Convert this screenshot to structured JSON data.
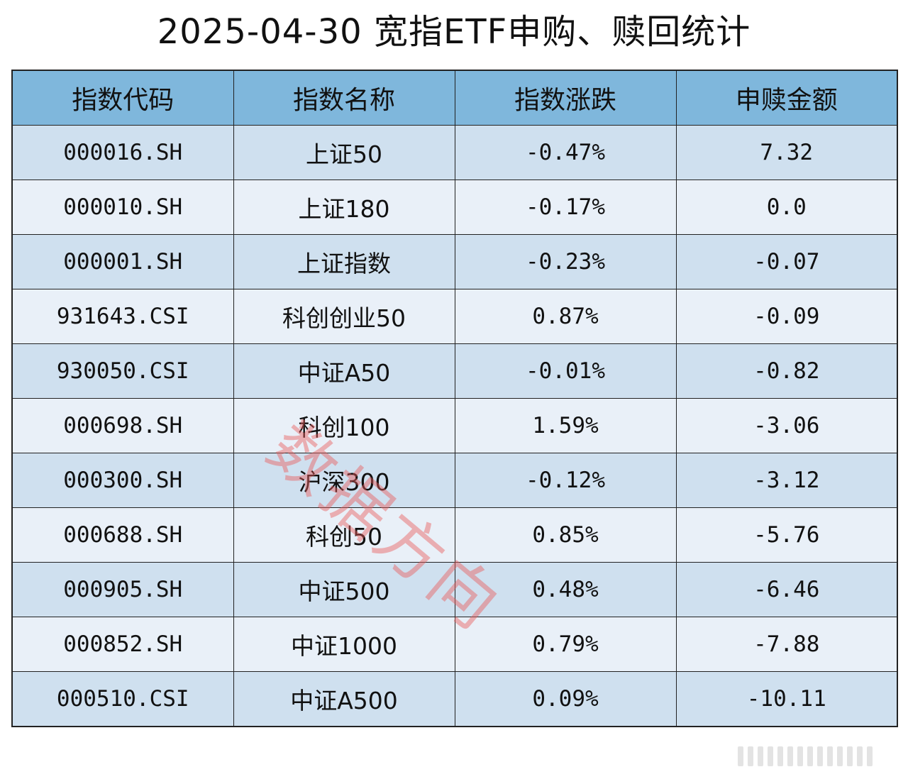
{
  "title": "2025-04-30 宽指ETF申购、赎回统计",
  "table": {
    "headers": [
      "指数代码",
      "指数名称",
      "指数涨跌",
      "申赎金额"
    ],
    "rows": [
      {
        "code": "000016.SH",
        "name": "上证50",
        "change": "-0.47%",
        "amount": "7.32"
      },
      {
        "code": "000010.SH",
        "name": "上证180",
        "change": "-0.17%",
        "amount": "0.0"
      },
      {
        "code": "000001.SH",
        "name": "上证指数",
        "change": "-0.23%",
        "amount": "-0.07"
      },
      {
        "code": "931643.CSI",
        "name": "科创创业50",
        "change": "0.87%",
        "amount": "-0.09"
      },
      {
        "code": "930050.CSI",
        "name": "中证A50",
        "change": "-0.01%",
        "amount": "-0.82"
      },
      {
        "code": "000698.SH",
        "name": "科创100",
        "change": "1.59%",
        "amount": "-3.06"
      },
      {
        "code": "000300.SH",
        "name": "沪深300",
        "change": "-0.12%",
        "amount": "-3.12"
      },
      {
        "code": "000688.SH",
        "name": "科创50",
        "change": "0.85%",
        "amount": "-5.76"
      },
      {
        "code": "000905.SH",
        "name": "中证500",
        "change": "0.48%",
        "amount": "-6.46"
      },
      {
        "code": "000852.SH",
        "name": "中证1000",
        "change": "0.79%",
        "amount": "-7.88"
      },
      {
        "code": "000510.CSI",
        "name": "中证A500",
        "change": "0.09%",
        "amount": "-10.11"
      }
    ]
  },
  "watermark": "数据方向",
  "colors": {
    "header_bg": "#7fb7dc",
    "row_odd": "#cfe0ef",
    "row_even": "#e9f0f8",
    "watermark": "#e85c5c"
  }
}
